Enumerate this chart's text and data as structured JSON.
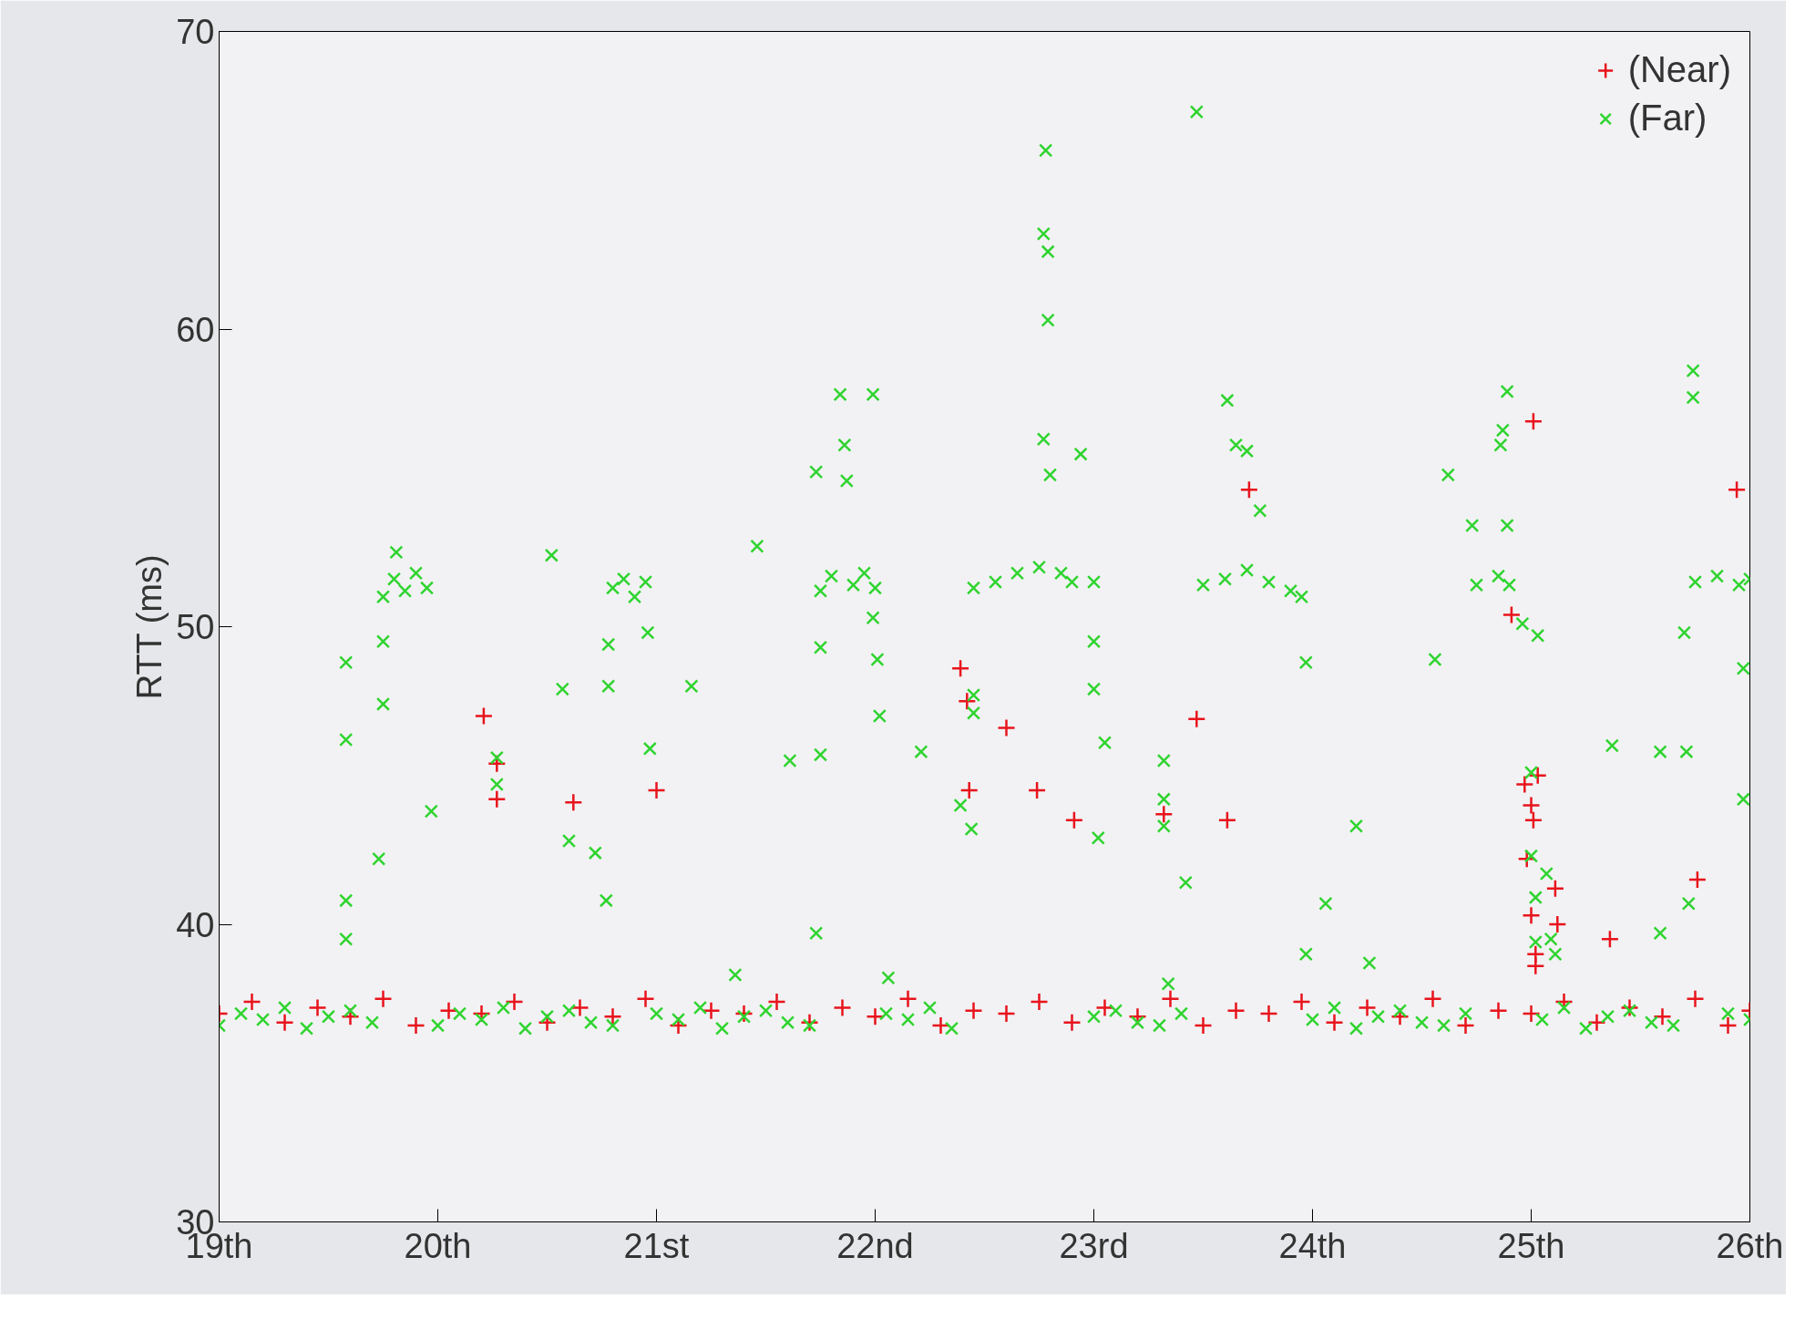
{
  "chart_data": {
    "type": "scatter",
    "ylabel": "RTT (ms)",
    "xlim": [
      19,
      26
    ],
    "ylim": [
      30,
      70
    ],
    "xticks": [
      {
        "value": 19,
        "label": "19th"
      },
      {
        "value": 20,
        "label": "20th"
      },
      {
        "value": 21,
        "label": "21st"
      },
      {
        "value": 22,
        "label": "22nd"
      },
      {
        "value": 23,
        "label": "23rd"
      },
      {
        "value": 24,
        "label": "24th"
      },
      {
        "value": 25,
        "label": "25th"
      },
      {
        "value": 26,
        "label": "26th"
      }
    ],
    "yticks": [
      30,
      40,
      50,
      60,
      70
    ],
    "grid": false,
    "legend": "top right",
    "series": [
      {
        "name": "(Near)",
        "color": "#e8141c",
        "marker": "cross",
        "x": [
          19.0,
          19.15,
          19.3,
          19.45,
          19.6,
          19.75,
          19.9,
          20.05,
          20.2,
          20.35,
          20.5,
          20.65,
          20.8,
          20.95,
          21.1,
          21.25,
          21.4,
          21.55,
          21.7,
          21.85,
          22.0,
          22.15,
          22.3,
          22.45,
          22.6,
          22.75,
          22.9,
          23.05,
          23.2,
          23.35,
          23.5,
          23.65,
          23.8,
          23.95,
          24.1,
          24.25,
          24.4,
          24.55,
          24.7,
          24.85,
          25.0,
          25.15,
          25.3,
          25.45,
          25.6,
          25.75,
          25.9,
          26.0,
          20.21,
          20.27,
          20.27,
          20.62,
          21.0,
          22.39,
          22.42,
          22.43,
          22.6,
          22.74,
          22.91,
          23.32,
          23.47,
          23.61,
          23.71,
          24.91,
          25.01,
          24.97,
          24.98,
          25.0,
          25.02,
          25.11,
          25.36,
          25.76,
          25.94,
          25.0,
          25.01,
          25.03,
          25.12,
          25.02
        ],
        "values": [
          37.0,
          37.4,
          36.7,
          37.2,
          36.9,
          37.5,
          36.6,
          37.1,
          37.0,
          37.4,
          36.7,
          37.2,
          36.9,
          37.5,
          36.6,
          37.1,
          37.0,
          37.4,
          36.7,
          37.2,
          36.9,
          37.5,
          36.6,
          37.1,
          37.0,
          37.4,
          36.7,
          37.2,
          36.9,
          37.5,
          36.6,
          37.1,
          37.0,
          37.4,
          36.7,
          37.2,
          36.9,
          37.5,
          36.6,
          37.1,
          37.0,
          37.4,
          36.7,
          37.2,
          36.9,
          37.5,
          36.6,
          37.1,
          47.0,
          45.4,
          44.2,
          44.1,
          44.5,
          48.6,
          47.5,
          44.5,
          46.6,
          44.5,
          43.5,
          43.7,
          46.9,
          43.5,
          54.6,
          50.4,
          56.9,
          44.7,
          42.2,
          40.3,
          38.6,
          41.2,
          39.5,
          41.5,
          54.6,
          44.0,
          43.5,
          45.0,
          40.0,
          39.0
        ]
      },
      {
        "name": "(Far)",
        "color": "#2fd42f",
        "marker": "x",
        "x": [
          19.0,
          19.1,
          19.2,
          19.3,
          19.4,
          19.5,
          19.6,
          19.7,
          20.0,
          20.1,
          20.2,
          20.3,
          20.4,
          20.5,
          20.6,
          20.7,
          20.8,
          21.0,
          21.1,
          21.2,
          21.3,
          21.4,
          21.5,
          21.6,
          21.7,
          22.05,
          22.15,
          22.25,
          22.35,
          23.0,
          23.1,
          23.2,
          23.3,
          23.4,
          24.0,
          24.1,
          24.2,
          24.3,
          24.4,
          24.5,
          24.6,
          24.7,
          25.05,
          25.15,
          25.25,
          25.35,
          25.45,
          25.55,
          25.65,
          25.9,
          26.0,
          19.8,
          19.85,
          19.9,
          19.95,
          19.75,
          20.8,
          20.85,
          20.9,
          20.95,
          21.75,
          21.8,
          21.9,
          21.95,
          22.0,
          22.45,
          22.55,
          22.65,
          22.75,
          22.85,
          22.9,
          23.0,
          23.5,
          23.6,
          23.7,
          23.8,
          23.9,
          23.95,
          24.75,
          24.85,
          24.9,
          25.75,
          25.85,
          25.95,
          26.0,
          19.58,
          19.58,
          19.58,
          19.58,
          19.73,
          19.75,
          19.75,
          19.81,
          19.97,
          20.27,
          20.27,
          20.52,
          20.57,
          20.6,
          20.72,
          20.77,
          20.78,
          20.78,
          20.97,
          20.96,
          21.16,
          21.36,
          21.46,
          21.61,
          21.73,
          21.73,
          21.75,
          21.75,
          21.84,
          21.86,
          21.87,
          21.99,
          21.99,
          22.01,
          22.02,
          22.06,
          22.21,
          22.39,
          22.44,
          22.45,
          22.45,
          22.78,
          22.77,
          22.79,
          22.79,
          22.77,
          22.8,
          22.94,
          23.0,
          23.0,
          23.02,
          23.05,
          23.32,
          23.32,
          23.32,
          23.34,
          23.42,
          23.47,
          23.61,
          23.65,
          23.7,
          23.76,
          23.97,
          23.97,
          24.06,
          24.2,
          24.26,
          24.56,
          24.62,
          24.73,
          24.89,
          24.87,
          24.86,
          24.89,
          24.96,
          25.03,
          25.0,
          25.0,
          25.02,
          25.02,
          25.07,
          25.09,
          25.11,
          25.37,
          25.59,
          25.59,
          25.7,
          25.71,
          25.72,
          25.74,
          25.74,
          25.97,
          25.97
        ],
        "values": [
          36.6,
          37.0,
          36.8,
          37.2,
          36.5,
          36.9,
          37.1,
          36.7,
          36.6,
          37.0,
          36.8,
          37.2,
          36.5,
          36.9,
          37.1,
          36.7,
          36.6,
          37.0,
          36.8,
          37.2,
          36.5,
          36.9,
          37.1,
          36.7,
          36.6,
          37.0,
          36.8,
          37.2,
          36.5,
          36.9,
          37.1,
          36.7,
          36.6,
          37.0,
          36.8,
          37.2,
          36.5,
          36.9,
          37.1,
          36.7,
          36.6,
          37.0,
          36.8,
          37.2,
          36.5,
          36.9,
          37.1,
          36.7,
          36.6,
          37.0,
          36.8,
          51.6,
          51.2,
          51.8,
          51.3,
          51.0,
          51.3,
          51.6,
          51.0,
          51.5,
          51.2,
          51.7,
          51.4,
          51.8,
          51.3,
          51.3,
          51.5,
          51.8,
          52.0,
          51.8,
          51.5,
          51.5,
          51.4,
          51.6,
          51.9,
          51.5,
          51.2,
          51.0,
          51.4,
          51.7,
          51.4,
          51.5,
          51.7,
          51.4,
          51.6,
          48.8,
          46.2,
          40.8,
          39.5,
          42.2,
          47.4,
          49.5,
          52.5,
          43.8,
          45.6,
          44.7,
          52.4,
          47.9,
          42.8,
          42.4,
          40.8,
          48.0,
          49.4,
          45.9,
          49.8,
          48.0,
          38.3,
          52.7,
          45.5,
          55.2,
          39.7,
          45.7,
          49.3,
          57.8,
          56.1,
          54.9,
          57.8,
          50.3,
          48.9,
          47.0,
          38.2,
          45.8,
          44.0,
          43.2,
          47.7,
          47.1,
          66.0,
          63.2,
          62.6,
          60.3,
          56.3,
          55.1,
          55.8,
          49.5,
          47.9,
          42.9,
          46.1,
          45.5,
          44.2,
          43.3,
          38.0,
          41.4,
          67.3,
          57.6,
          56.1,
          55.9,
          53.9,
          48.8,
          39.0,
          40.7,
          43.3,
          38.7,
          48.9,
          55.1,
          53.4,
          57.9,
          56.6,
          56.1,
          53.4,
          50.1,
          49.7,
          45.1,
          42.3,
          40.9,
          39.4,
          41.7,
          39.5,
          39.0,
          46.0,
          45.8,
          39.7,
          49.8,
          45.8,
          40.7,
          58.6,
          57.7,
          48.6,
          44.2
        ]
      }
    ]
  }
}
